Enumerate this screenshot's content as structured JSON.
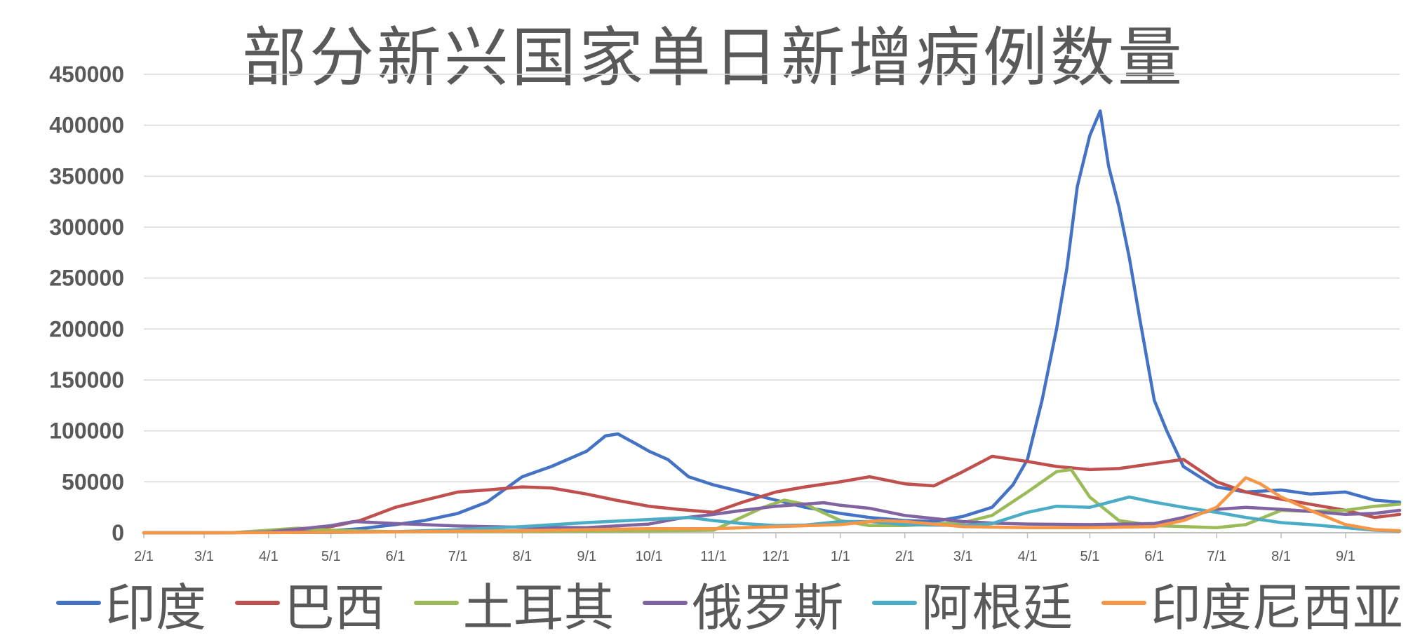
{
  "chart_data": {
    "type": "line",
    "title": "部分新兴国家单日新增病例数量",
    "xlabel": "",
    "ylabel": "",
    "ylim": [
      0,
      450000
    ],
    "yticks": [
      "450000",
      "400000",
      "350000",
      "300000",
      "250000",
      "200000",
      "150000",
      "100000",
      "50000",
      "0"
    ],
    "yticks_values": [
      450000,
      400000,
      350000,
      300000,
      250000,
      200000,
      150000,
      100000,
      50000,
      0
    ],
    "x_start": "2020-02-01",
    "x_end": "2021-09-27",
    "xtick_labels": [
      "2/1",
      "3/1",
      "4/1",
      "5/1",
      "6/1",
      "7/1",
      "8/1",
      "9/1",
      "10/1",
      "11/1",
      "12/1",
      "1/1",
      "2/1",
      "3/1",
      "4/1",
      "5/1",
      "6/1",
      "7/1",
      "8/1",
      "9/1"
    ],
    "xtick_dates": [
      "2020-02-01",
      "2020-03-01",
      "2020-04-01",
      "2020-05-01",
      "2020-06-01",
      "2020-07-01",
      "2020-08-01",
      "2020-09-01",
      "2020-10-01",
      "2020-11-01",
      "2020-12-01",
      "2021-01-01",
      "2021-02-01",
      "2021-03-01",
      "2021-04-01",
      "2021-05-01",
      "2021-06-01",
      "2021-07-01",
      "2021-08-01",
      "2021-09-01"
    ],
    "grid": true,
    "legend_position": "bottom",
    "series": [
      {
        "name": "印度",
        "color": "#4472C4",
        "points": [
          [
            "2020-02-01",
            0
          ],
          [
            "2020-03-15",
            100
          ],
          [
            "2020-04-01",
            500
          ],
          [
            "2020-04-15",
            1200
          ],
          [
            "2020-05-01",
            2000
          ],
          [
            "2020-05-15",
            4000
          ],
          [
            "2020-06-01",
            8000
          ],
          [
            "2020-06-15",
            12000
          ],
          [
            "2020-07-01",
            19000
          ],
          [
            "2020-07-15",
            30000
          ],
          [
            "2020-08-01",
            55000
          ],
          [
            "2020-08-15",
            65000
          ],
          [
            "2020-09-01",
            80000
          ],
          [
            "2020-09-10",
            95000
          ],
          [
            "2020-09-16",
            97000
          ],
          [
            "2020-09-25",
            87000
          ],
          [
            "2020-10-01",
            80000
          ],
          [
            "2020-10-10",
            72000
          ],
          [
            "2020-10-20",
            55000
          ],
          [
            "2020-11-01",
            47000
          ],
          [
            "2020-11-15",
            40000
          ],
          [
            "2020-12-01",
            32000
          ],
          [
            "2020-12-15",
            25000
          ],
          [
            "2021-01-01",
            19000
          ],
          [
            "2021-01-15",
            15000
          ],
          [
            "2021-02-01",
            12000
          ],
          [
            "2021-02-15",
            11000
          ],
          [
            "2021-03-01",
            16000
          ],
          [
            "2021-03-15",
            25000
          ],
          [
            "2021-03-25",
            47000
          ],
          [
            "2021-04-01",
            72000
          ],
          [
            "2021-04-08",
            130000
          ],
          [
            "2021-04-15",
            200000
          ],
          [
            "2021-04-20",
            260000
          ],
          [
            "2021-04-25",
            340000
          ],
          [
            "2021-05-01",
            390000
          ],
          [
            "2021-05-06",
            414000
          ],
          [
            "2021-05-10",
            360000
          ],
          [
            "2021-05-15",
            320000
          ],
          [
            "2021-05-20",
            270000
          ],
          [
            "2021-05-25",
            210000
          ],
          [
            "2021-06-01",
            130000
          ],
          [
            "2021-06-07",
            100000
          ],
          [
            "2021-06-15",
            65000
          ],
          [
            "2021-06-25",
            52000
          ],
          [
            "2021-07-01",
            45000
          ],
          [
            "2021-07-15",
            40000
          ],
          [
            "2021-08-01",
            42000
          ],
          [
            "2021-08-15",
            38000
          ],
          [
            "2021-09-01",
            40000
          ],
          [
            "2021-09-15",
            32000
          ],
          [
            "2021-09-27",
            30000
          ]
        ]
      },
      {
        "name": "巴西",
        "color": "#C0504D",
        "points": [
          [
            "2020-02-01",
            0
          ],
          [
            "2020-03-15",
            200
          ],
          [
            "2020-04-01",
            1000
          ],
          [
            "2020-04-15",
            3000
          ],
          [
            "2020-05-01",
            6000
          ],
          [
            "2020-05-15",
            12000
          ],
          [
            "2020-06-01",
            25000
          ],
          [
            "2020-06-15",
            32000
          ],
          [
            "2020-07-01",
            40000
          ],
          [
            "2020-07-15",
            42000
          ],
          [
            "2020-08-01",
            45000
          ],
          [
            "2020-08-15",
            44000
          ],
          [
            "2020-09-01",
            38000
          ],
          [
            "2020-09-15",
            32000
          ],
          [
            "2020-10-01",
            26000
          ],
          [
            "2020-10-15",
            23000
          ],
          [
            "2020-11-01",
            20000
          ],
          [
            "2020-11-15",
            30000
          ],
          [
            "2020-12-01",
            40000
          ],
          [
            "2020-12-15",
            45000
          ],
          [
            "2021-01-01",
            50000
          ],
          [
            "2021-01-15",
            55000
          ],
          [
            "2021-02-01",
            48000
          ],
          [
            "2021-02-15",
            46000
          ],
          [
            "2021-03-01",
            60000
          ],
          [
            "2021-03-15",
            75000
          ],
          [
            "2021-04-01",
            70000
          ],
          [
            "2021-04-15",
            65000
          ],
          [
            "2021-05-01",
            62000
          ],
          [
            "2021-05-15",
            63000
          ],
          [
            "2021-06-01",
            68000
          ],
          [
            "2021-06-15",
            72000
          ],
          [
            "2021-07-01",
            50000
          ],
          [
            "2021-07-15",
            40000
          ],
          [
            "2021-08-01",
            33000
          ],
          [
            "2021-08-15",
            28000
          ],
          [
            "2021-09-01",
            22000
          ],
          [
            "2021-09-15",
            15000
          ],
          [
            "2021-09-27",
            18000
          ]
        ]
      },
      {
        "name": "土耳其",
        "color": "#9BBB59",
        "points": [
          [
            "2020-02-01",
            0
          ],
          [
            "2020-03-15",
            50
          ],
          [
            "2020-04-01",
            2500
          ],
          [
            "2020-04-15",
            4500
          ],
          [
            "2020-05-01",
            2500
          ],
          [
            "2020-06-01",
            1000
          ],
          [
            "2020-07-01",
            1200
          ],
          [
            "2020-08-01",
            1200
          ],
          [
            "2020-09-01",
            1500
          ],
          [
            "2020-10-01",
            1700
          ],
          [
            "2020-11-01",
            2500
          ],
          [
            "2020-11-25",
            25000
          ],
          [
            "2020-12-05",
            32000
          ],
          [
            "2020-12-15",
            28000
          ],
          [
            "2021-01-01",
            12000
          ],
          [
            "2021-01-15",
            7000
          ],
          [
            "2021-02-01",
            7000
          ],
          [
            "2021-03-01",
            10000
          ],
          [
            "2021-03-15",
            17000
          ],
          [
            "2021-04-01",
            40000
          ],
          [
            "2021-04-15",
            60000
          ],
          [
            "2021-04-22",
            62000
          ],
          [
            "2021-05-01",
            35000
          ],
          [
            "2021-05-15",
            12000
          ],
          [
            "2021-06-01",
            7000
          ],
          [
            "2021-07-01",
            5000
          ],
          [
            "2021-07-15",
            8000
          ],
          [
            "2021-08-01",
            22000
          ],
          [
            "2021-08-15",
            21000
          ],
          [
            "2021-09-01",
            22000
          ],
          [
            "2021-09-15",
            26000
          ],
          [
            "2021-09-27",
            28000
          ]
        ]
      },
      {
        "name": "俄罗斯",
        "color": "#8064A2",
        "points": [
          [
            "2020-02-01",
            0
          ],
          [
            "2020-03-15",
            50
          ],
          [
            "2020-04-01",
            800
          ],
          [
            "2020-04-15",
            3500
          ],
          [
            "2020-05-01",
            7000
          ],
          [
            "2020-05-12",
            11000
          ],
          [
            "2020-06-01",
            9000
          ],
          [
            "2020-06-15",
            8000
          ],
          [
            "2020-07-01",
            6600
          ],
          [
            "2020-08-01",
            5300
          ],
          [
            "2020-09-01",
            5000
          ],
          [
            "2020-10-01",
            8500
          ],
          [
            "2020-10-15",
            14000
          ],
          [
            "2020-11-01",
            18000
          ],
          [
            "2020-11-15",
            22000
          ],
          [
            "2020-12-01",
            26000
          ],
          [
            "2020-12-24",
            29500
          ],
          [
            "2021-01-01",
            27000
          ],
          [
            "2021-01-15",
            24000
          ],
          [
            "2021-02-01",
            17000
          ],
          [
            "2021-02-15",
            14000
          ],
          [
            "2021-03-01",
            11000
          ],
          [
            "2021-03-15",
            9500
          ],
          [
            "2021-04-01",
            8500
          ],
          [
            "2021-05-01",
            8000
          ],
          [
            "2021-06-01",
            9000
          ],
          [
            "2021-06-15",
            15000
          ],
          [
            "2021-07-01",
            23000
          ],
          [
            "2021-07-15",
            25000
          ],
          [
            "2021-08-01",
            23000
          ],
          [
            "2021-08-15",
            21000
          ],
          [
            "2021-09-01",
            18000
          ],
          [
            "2021-09-15",
            19000
          ],
          [
            "2021-09-27",
            22000
          ]
        ]
      },
      {
        "name": "阿根廷",
        "color": "#4BACC6",
        "points": [
          [
            "2020-02-01",
            0
          ],
          [
            "2020-04-01",
            200
          ],
          [
            "2020-05-01",
            200
          ],
          [
            "2020-06-01",
            1000
          ],
          [
            "2020-07-01",
            3000
          ],
          [
            "2020-08-01",
            6000
          ],
          [
            "2020-09-01",
            10000
          ],
          [
            "2020-10-01",
            13000
          ],
          [
            "2020-10-20",
            15000
          ],
          [
            "2020-11-01",
            12000
          ],
          [
            "2020-11-15",
            9000
          ],
          [
            "2020-12-01",
            7000
          ],
          [
            "2020-12-15",
            7500
          ],
          [
            "2021-01-01",
            11000
          ],
          [
            "2021-01-15",
            11000
          ],
          [
            "2021-02-01",
            8000
          ],
          [
            "2021-03-01",
            7000
          ],
          [
            "2021-03-15",
            9000
          ],
          [
            "2021-04-01",
            20000
          ],
          [
            "2021-04-15",
            26000
          ],
          [
            "2021-05-01",
            25000
          ],
          [
            "2021-05-20",
            35000
          ],
          [
            "2021-06-01",
            30000
          ],
          [
            "2021-06-15",
            25000
          ],
          [
            "2021-07-01",
            20000
          ],
          [
            "2021-07-15",
            15000
          ],
          [
            "2021-08-01",
            10000
          ],
          [
            "2021-08-15",
            8000
          ],
          [
            "2021-09-01",
            5000
          ],
          [
            "2021-09-15",
            2500
          ],
          [
            "2021-09-27",
            1500
          ]
        ]
      },
      {
        "name": "印度尼西亚",
        "color": "#F79646",
        "points": [
          [
            "2020-02-01",
            0
          ],
          [
            "2020-04-01",
            100
          ],
          [
            "2020-05-01",
            500
          ],
          [
            "2020-06-01",
            800
          ],
          [
            "2020-07-01",
            1500
          ],
          [
            "2020-08-01",
            2000
          ],
          [
            "2020-09-01",
            3000
          ],
          [
            "2020-10-01",
            4000
          ],
          [
            "2020-11-01",
            4000
          ],
          [
            "2020-12-01",
            6000
          ],
          [
            "2021-01-01",
            8000
          ],
          [
            "2021-01-20",
            12000
          ],
          [
            "2021-02-01",
            11000
          ],
          [
            "2021-03-01",
            6000
          ],
          [
            "2021-04-01",
            5000
          ],
          [
            "2021-05-01",
            5000
          ],
          [
            "2021-06-01",
            6000
          ],
          [
            "2021-06-15",
            12000
          ],
          [
            "2021-07-01",
            25000
          ],
          [
            "2021-07-15",
            54000
          ],
          [
            "2021-07-22",
            48000
          ],
          [
            "2021-08-01",
            35000
          ],
          [
            "2021-08-15",
            22000
          ],
          [
            "2021-09-01",
            8000
          ],
          [
            "2021-09-15",
            3000
          ],
          [
            "2021-09-27",
            2000
          ]
        ]
      }
    ]
  }
}
